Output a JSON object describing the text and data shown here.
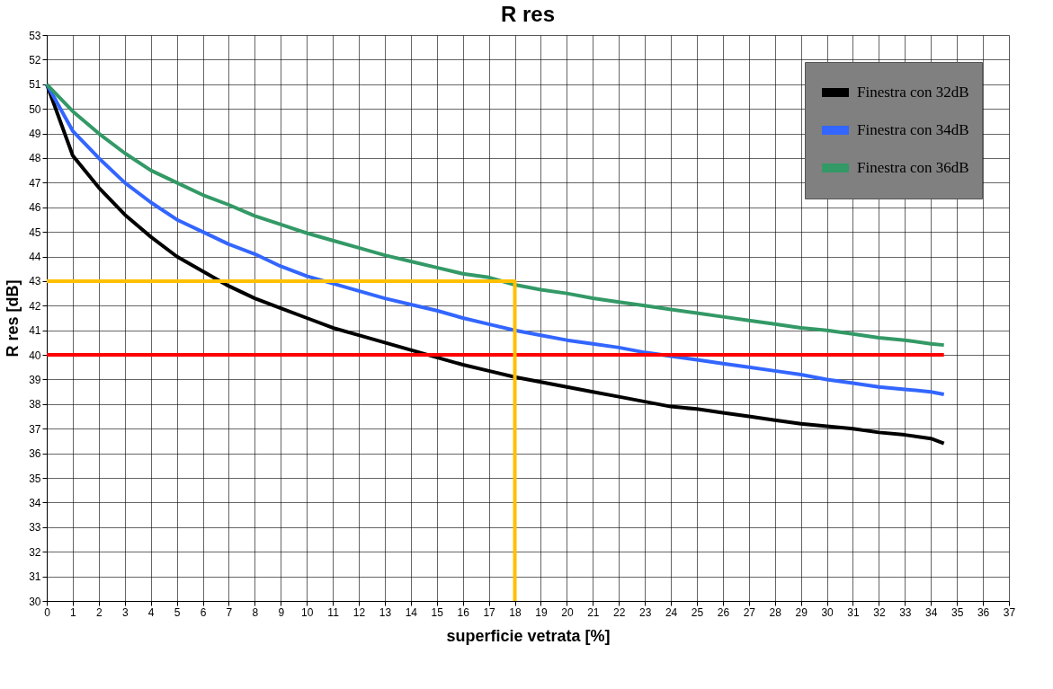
{
  "chart_data": {
    "type": "line",
    "title": "R res",
    "xlabel": "superficie vetrata [%]",
    "ylabel": "R res [dB]",
    "x": [
      0,
      1,
      2,
      3,
      4,
      5,
      6,
      7,
      8,
      9,
      10,
      11,
      12,
      13,
      14,
      15,
      16,
      17,
      18,
      19,
      20,
      21,
      22,
      23,
      24,
      25,
      26,
      27,
      28,
      29,
      30,
      31,
      32,
      33,
      34,
      34.5
    ],
    "series": [
      {
        "name": "Finestra con 32dB",
        "color": "#000000",
        "values": [
          51,
          48.1,
          46.8,
          45.7,
          44.8,
          44.0,
          43.4,
          42.8,
          42.3,
          41.9,
          41.5,
          41.1,
          40.8,
          40.5,
          40.2,
          39.9,
          39.6,
          39.35,
          39.1,
          38.9,
          38.7,
          38.5,
          38.3,
          38.1,
          37.9,
          37.8,
          37.65,
          37.5,
          37.35,
          37.2,
          37.1,
          37.0,
          36.85,
          36.75,
          36.6,
          36.4
        ]
      },
      {
        "name": "Finestra con 34dB",
        "color": "#3366ff",
        "values": [
          51,
          49.1,
          48.0,
          47.0,
          46.2,
          45.5,
          45.0,
          44.5,
          44.1,
          43.6,
          43.2,
          42.9,
          42.6,
          42.3,
          42.05,
          41.8,
          41.5,
          41.25,
          41.0,
          40.8,
          40.6,
          40.45,
          40.3,
          40.1,
          39.95,
          39.8,
          39.65,
          39.5,
          39.35,
          39.2,
          39.0,
          38.85,
          38.7,
          38.6,
          38.5,
          38.4
        ]
      },
      {
        "name": "Finestra con 36dB",
        "color": "#339966",
        "values": [
          51,
          49.9,
          49.0,
          48.2,
          47.5,
          47.0,
          46.5,
          46.1,
          45.65,
          45.3,
          44.95,
          44.65,
          44.35,
          44.05,
          43.8,
          43.55,
          43.3,
          43.15,
          42.85,
          42.65,
          42.5,
          42.3,
          42.15,
          42.0,
          41.85,
          41.7,
          41.55,
          41.4,
          41.25,
          41.1,
          41.0,
          40.85,
          40.7,
          40.6,
          40.45,
          40.4
        ]
      },
      {
        "color": "#ff0000",
        "x": [
          0,
          34.5
        ],
        "values": [
          40,
          40
        ]
      },
      {
        "color": "#ffc000",
        "x": [
          18,
          18,
          0
        ],
        "values": [
          30,
          43,
          43
        ]
      }
    ],
    "xlim": [
      0,
      37
    ],
    "xticks": [
      0,
      1,
      2,
      3,
      4,
      5,
      6,
      7,
      8,
      9,
      10,
      11,
      12,
      13,
      14,
      15,
      16,
      17,
      18,
      19,
      20,
      21,
      22,
      23,
      24,
      25,
      26,
      27,
      28,
      29,
      30,
      31,
      32,
      33,
      34,
      35,
      36,
      37
    ],
    "ylim": [
      30,
      53
    ],
    "yticks": [
      30,
      31,
      32,
      33,
      34,
      35,
      36,
      37,
      38,
      39,
      40,
      41,
      42,
      43,
      44,
      45,
      46,
      47,
      48,
      49,
      50,
      51,
      52,
      53
    ],
    "grid": true,
    "legend": "top right",
    "marker": "none",
    "line_style": "solid"
  }
}
